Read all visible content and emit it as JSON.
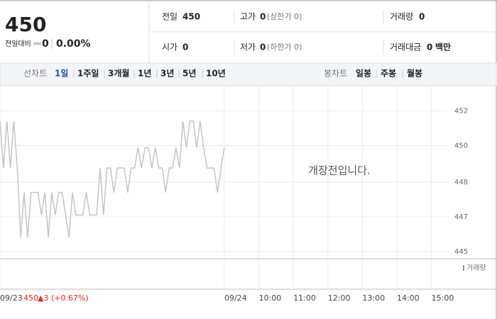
{
  "summary": {
    "price": "450",
    "change_label": "전일대비",
    "change": "0",
    "change_rate": "0.00%"
  },
  "stats": [
    {
      "label": "전일",
      "value": "450"
    },
    {
      "label": "고가",
      "value": "0",
      "note": "(상한가 0)"
    },
    {
      "label": "거래량",
      "value": "0"
    },
    {
      "label": "시가",
      "value": "0"
    },
    {
      "label": "저가",
      "value": "0",
      "note": "(하한가 0)"
    },
    {
      "label": "거래대금",
      "value": "0",
      "unit": "백만"
    }
  ],
  "tabs": {
    "line_label": "선차트",
    "line": [
      "1일",
      "1주일",
      "3개월",
      "1년",
      "3년",
      "5년",
      "10년"
    ],
    "candle_label": "봉차트",
    "candle": [
      "일봉",
      "주봉",
      "월봉"
    ]
  },
  "chart_data": {
    "type": "line",
    "message": "개장전입니다.",
    "volume_label": "거래량",
    "annotation": {
      "date": "09/23",
      "price": "450",
      "change": "▲3 (+0.67%)"
    },
    "color": "#c4c4c4",
    "grid": true,
    "x": [
      0,
      1,
      2,
      3,
      4,
      5,
      6,
      7,
      8,
      9,
      10,
      11,
      12,
      13,
      14,
      15,
      16,
      17,
      18,
      19,
      20,
      21,
      22,
      23,
      24,
      25,
      26,
      27,
      28,
      29,
      30,
      31,
      32,
      33,
      34,
      35,
      36,
      37,
      38,
      39,
      40,
      41,
      42,
      43,
      44,
      45,
      46,
      47,
      48,
      49,
      50,
      51,
      52,
      53,
      54,
      55,
      56,
      57,
      58,
      59,
      60,
      61,
      62,
      63,
      64,
      65
    ],
    "values": [
      451.4,
      449.1,
      451.4,
      449.1,
      451.4,
      449.1,
      445.7,
      447.9,
      445.7,
      447.9,
      447.9,
      447.9,
      446.8,
      447.9,
      445.7,
      447.9,
      446.8,
      447.9,
      447.9,
      446.8,
      445.7,
      447.9,
      446.8,
      446.8,
      446.8,
      447.9,
      446.8,
      446.8,
      446.8,
      449.1,
      446.8,
      449.1,
      449.1,
      447.9,
      449.1,
      449.1,
      449.1,
      447.9,
      449.1,
      449.1,
      450.1,
      449.1,
      450.1,
      450.1,
      449.1,
      450.1,
      449.1,
      449.1,
      447.9,
      449.1,
      449.1,
      450.1,
      449.1,
      451.4,
      450.1,
      451.4,
      451.4,
      450.1,
      451.4,
      450.1,
      449.1,
      449.1,
      449.1,
      447.9,
      449.1,
      450.1
    ],
    "xlim": [
      0,
      144
    ],
    "xticks": [
      {
        "value": 0,
        "label": "09/23"
      },
      {
        "value": 65,
        "label": "09/24"
      },
      {
        "value": 75,
        "label": "10:00"
      },
      {
        "value": 85,
        "label": "11:00"
      },
      {
        "value": 95,
        "label": "12:00"
      },
      {
        "value": 105,
        "label": "13:00"
      },
      {
        "value": 115,
        "label": "14:00"
      },
      {
        "value": 125,
        "label": "15:00"
      }
    ],
    "ylim": [
      444.65,
      453.1
    ],
    "yticks": [
      {
        "value": 451.9,
        "label": "452"
      },
      {
        "value": 450.2,
        "label": "450"
      },
      {
        "value": 448.4,
        "label": "448"
      },
      {
        "value": 446.7,
        "label": "447"
      },
      {
        "value": 445.0,
        "label": "445"
      }
    ]
  }
}
